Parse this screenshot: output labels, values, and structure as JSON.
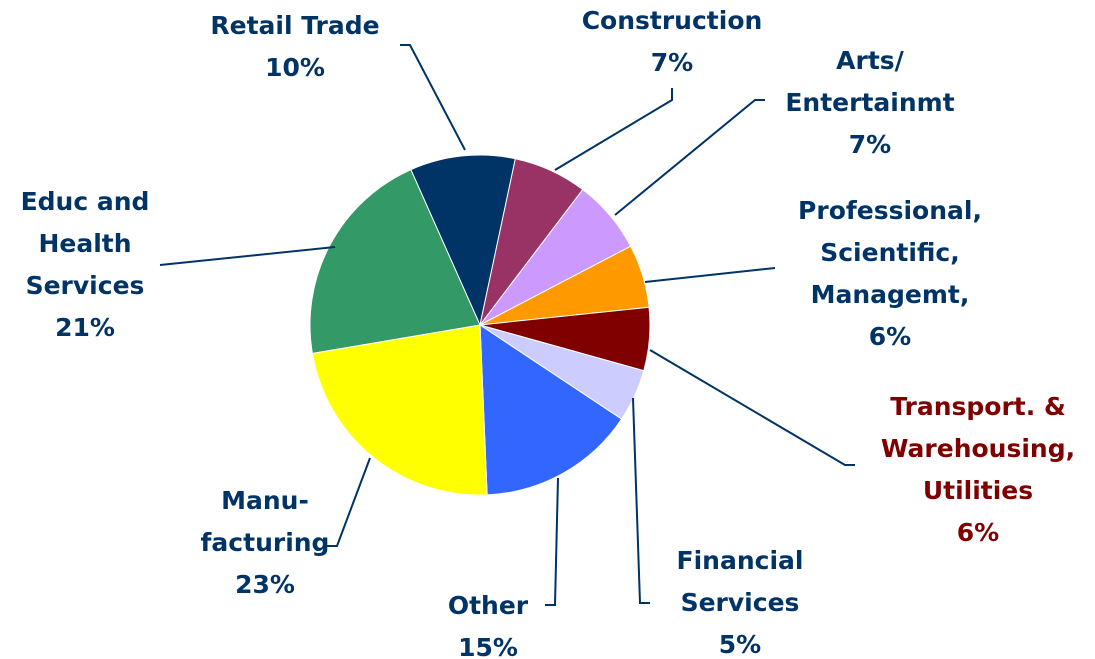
{
  "chart_data": {
    "type": "pie",
    "categories": [
      [
        "Retail Trade"
      ],
      [
        "Construction"
      ],
      [
        "Arts/",
        "Entertainmt"
      ],
      [
        "Professional,",
        "Scientific,",
        "Managemt,"
      ],
      [
        "Transport. &",
        "Warehousing,",
        "Utilities"
      ],
      [
        "Financial",
        "Services"
      ],
      [
        "Other"
      ],
      [
        "Manu-",
        "facturing"
      ],
      [
        "Educ and",
        "Health",
        "Services"
      ]
    ],
    "values": [
      10,
      7,
      7,
      6,
      6,
      5,
      15,
      23,
      21
    ],
    "value_labels": [
      "10%",
      "7%",
      "7%",
      "6%",
      "6%",
      "5%",
      "15%",
      "23%",
      "21%"
    ],
    "colors": [
      "#003366",
      "#993366",
      "#cc99ff",
      "#ff9900",
      "#800000",
      "#ccccff",
      "#3366ff",
      "#ffff00",
      "#339966"
    ],
    "label_colors": [
      "#003366",
      "#003366",
      "#003366",
      "#003366",
      "#800000",
      "#003366",
      "#003366",
      "#003366",
      "#003366"
    ]
  }
}
